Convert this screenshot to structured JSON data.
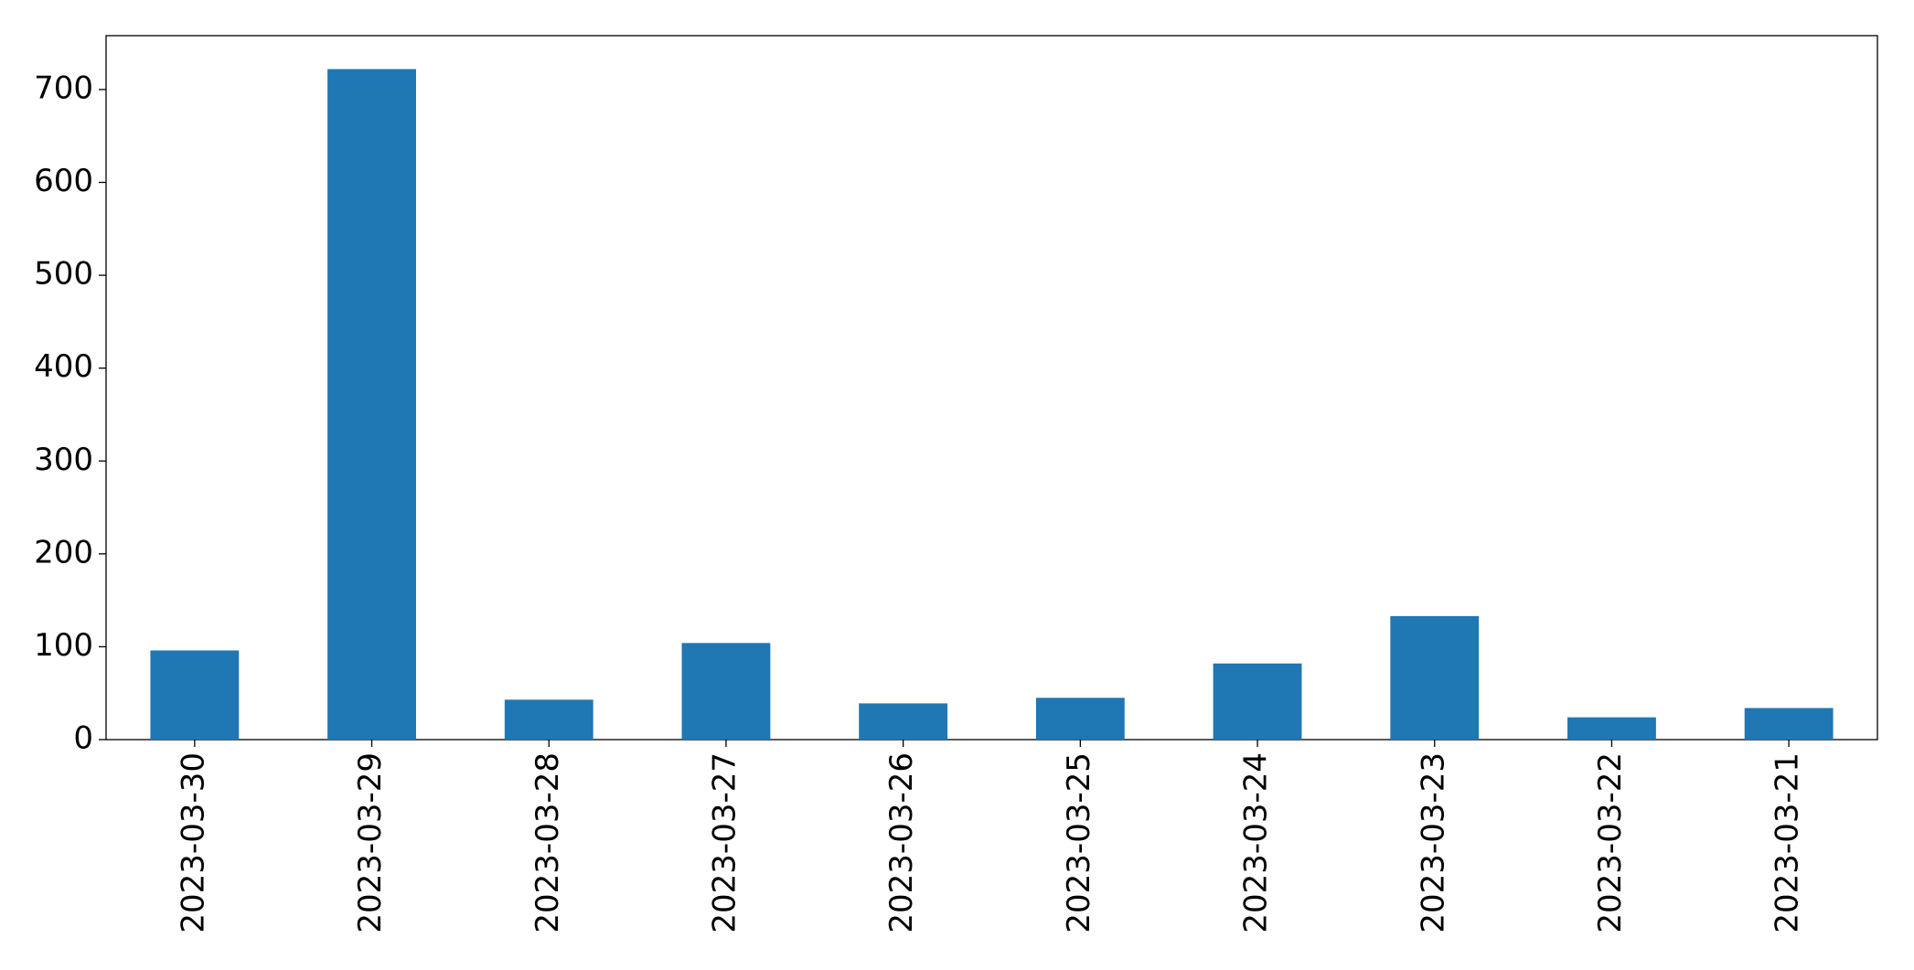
{
  "chart_data": {
    "type": "bar",
    "categories": [
      "2023-03-30",
      "2023-03-29",
      "2023-03-28",
      "2023-03-27",
      "2023-03-26",
      "2023-03-25",
      "2023-03-24",
      "2023-03-23",
      "2023-03-22",
      "2023-03-21"
    ],
    "values": [
      96,
      722,
      43,
      104,
      39,
      45,
      82,
      133,
      24,
      34
    ],
    "color": "#1f77b4",
    "ylim": [
      0,
      758
    ],
    "yticks": [
      0,
      100,
      200,
      300,
      400,
      500,
      600,
      700
    ],
    "grid": false
  }
}
